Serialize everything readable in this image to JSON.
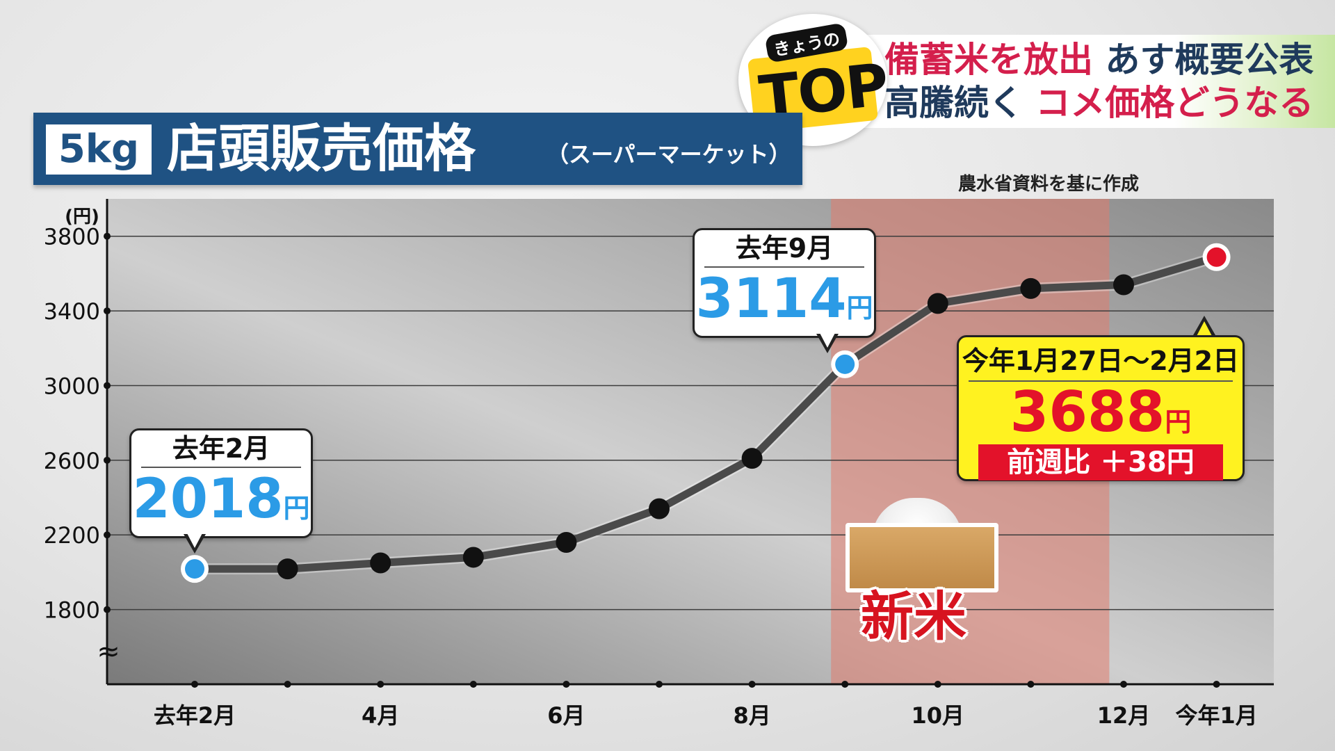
{
  "headline": {
    "line1_red": "備蓄米を放出",
    "line1_navy": "あす概要公表",
    "line2_navy": "高騰続く",
    "line2_red": "コメ価格どうなる"
  },
  "badge": {
    "kyou": "きょうの",
    "top": "TOP"
  },
  "title": {
    "unit": "5kg",
    "main": "店頭販売価格",
    "sub": "（スーパーマーケット）"
  },
  "source_note": "農水省資料を基に作成",
  "callouts": {
    "feb": {
      "period": "去年2月",
      "price": "2018",
      "unit": "円"
    },
    "sep": {
      "period": "去年9月",
      "price": "3114",
      "unit": "円"
    },
    "latest": {
      "period": "今年1月27日～2月2日",
      "price": "3688",
      "unit": "円",
      "change": "前週比 ＋38円"
    }
  },
  "new_rice_label": "新米",
  "colors": {
    "line": "#4a4a4a",
    "point": "#111111",
    "highlight_point": "#2b9be6",
    "latest_point": "#e3122a",
    "new_rice_band": "#e07b6d",
    "title_bar": "#1f5283"
  },
  "chart_data": {
    "type": "line",
    "ylabel": "(円)",
    "ylim": [
      1400,
      4000
    ],
    "y_ticks": [
      "1800",
      "2200",
      "2600",
      "3000",
      "3400",
      "3800"
    ],
    "y_break": "≈",
    "x_labels": [
      "去年2月",
      "",
      "4月",
      "",
      "6月",
      "",
      "8月",
      "",
      "10月",
      "",
      "12月",
      "今年1月"
    ],
    "series": [
      {
        "values": [
          2018,
          2018,
          2050,
          2080,
          2160,
          2340,
          2610,
          3114,
          3440,
          3520,
          3540,
          3688
        ]
      }
    ],
    "highlight_indices": [
      0,
      7
    ],
    "latest_index": 11,
    "new_rice_band": [
      7,
      9
    ],
    "grid": true
  }
}
